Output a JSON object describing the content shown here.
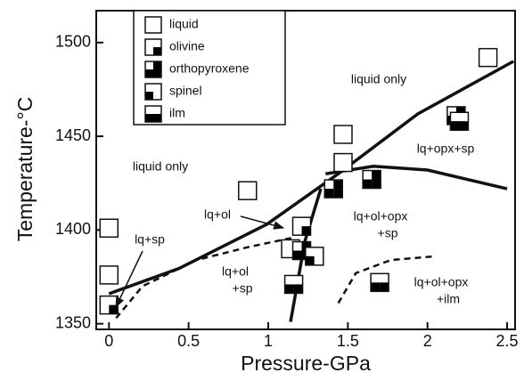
{
  "chart_data": {
    "type": "scatter",
    "x_label": "Pressure-GPa",
    "y_label": "Temperature-°C",
    "xlim": [
      -0.08,
      2.55
    ],
    "ylim": [
      1347,
      1517
    ],
    "xticks": [
      0,
      0.5,
      1,
      1.5,
      2,
      2.5
    ],
    "yticks": [
      1350,
      1400,
      1450,
      1500
    ],
    "series": [
      {
        "name": "liquid",
        "quadrants": [
          "white",
          "white",
          "white",
          "white"
        ],
        "x": [
          0,
          0,
          0.87,
          1.47,
          1.47,
          2.38,
          1.14
        ],
        "y": [
          1401,
          1376,
          1421,
          1451,
          1436,
          1492,
          1390
        ]
      },
      {
        "name": "olivine",
        "quadrants": [
          "white",
          "white",
          "white",
          "black"
        ],
        "x": [
          0,
          1.21
        ],
        "y": [
          1360,
          1402
        ]
      },
      {
        "name": "orthopyroxene",
        "quadrants": [
          "white",
          "black",
          "black",
          "black"
        ],
        "x": [
          1.41,
          1.65,
          2.18,
          1.21
        ],
        "y": [
          1422,
          1427,
          1461,
          1389
        ]
      },
      {
        "name": "spinel",
        "quadrants": [
          "white",
          "white",
          "black",
          "white"
        ],
        "x": [
          1.29
        ],
        "y": [
          1386
        ]
      },
      {
        "name": "ilm",
        "quadrants": [
          "white",
          "white",
          "black",
          "black"
        ],
        "x": [
          1.16,
          1.7,
          2.2
        ],
        "y": [
          1371,
          1372,
          1458
        ]
      }
    ],
    "lines": [
      {
        "style": "solid",
        "x": [
          0,
          0.44,
          0.99,
          1.44,
          1.94,
          2.54
        ],
        "y": [
          1366,
          1379.5,
          1403,
          1430,
          1462,
          1490
        ]
      },
      {
        "style": "solid",
        "x": [
          1.36,
          1.66,
          2.0,
          2.5
        ],
        "y": [
          1430,
          1434,
          1432,
          1422
        ]
      },
      {
        "style": "solid",
        "x": [
          1.14,
          1.18,
          1.23,
          1.33
        ],
        "y": [
          1351,
          1370,
          1394,
          1422
        ]
      },
      {
        "style": "dashed",
        "x": [
          0.045,
          0.21,
          0.55,
          0.88,
          1.16
        ],
        "y": [
          1353,
          1370,
          1384,
          1391,
          1396
        ]
      },
      {
        "style": "dashed",
        "x": [
          1.44,
          1.55,
          1.77,
          2.05
        ],
        "y": [
          1361,
          1377,
          1384,
          1386
        ]
      }
    ],
    "annotations": [
      [
        "liquid only"
      ],
      [
        "liquid only"
      ],
      [
        "lq+ol"
      ],
      [
        "lq+sp"
      ],
      [
        "lq+ol",
        "+sp"
      ],
      [
        "lq+ol+opx",
        "+sp"
      ],
      [
        "lq+opx+sp"
      ],
      [
        "lq+ol+opx",
        "+ilm"
      ]
    ]
  }
}
